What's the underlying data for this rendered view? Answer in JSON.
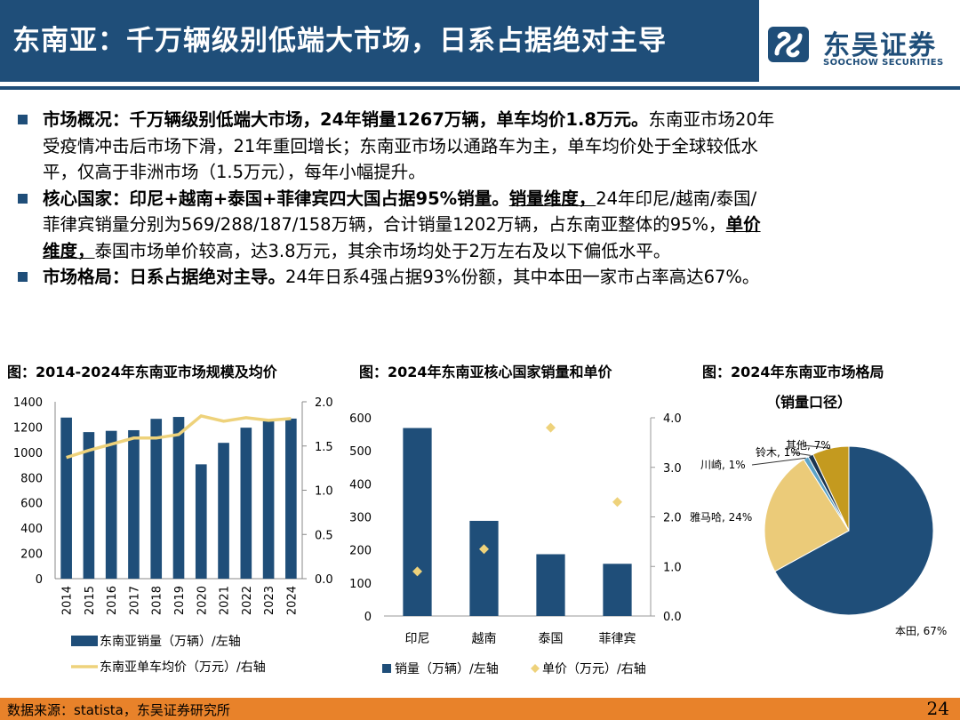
{
  "header": {
    "title": "东南亚：千万辆级别低端大市场，日系占据绝对主导",
    "brand_cn": "东吴证券",
    "brand_en": "SOOCHOW SECURITIES",
    "brand_color": "#1F4E79"
  },
  "bullets": [
    {
      "lead": "市场概况：千万辆级别低端大市场，24年销量1267万辆，单车均价1.8万元。",
      "lines": [
        "东南亚市场20年",
        "受疫情冲击后市场下滑，21年重回增长；东南亚市场以通路车为主，单车均价处于全球较低水",
        "平，仅高于非洲市场（1.5万元），每年小幅提升。"
      ]
    },
    {
      "lead": "核心国家：印尼+越南+泰国+菲律宾四大国占据95%销量。",
      "sub1": "销量维度，",
      "text1": "24年印尼/越南/泰国/",
      "line2": "菲律宾销量分别为569/288/187/158万辆，合计销量1202万辆，占东南亚整体的95%，",
      "sub2a": "单价",
      "sub2b": "维度，",
      "text3": "泰国市场单价较高，达3.8万元，其余市场均处于2万左右及以下偏低水平。"
    },
    {
      "lead": "市场格局：日系占据绝对主导。",
      "text": "24年日系4强占据93%份额，其中本田一家市占率高达67%。"
    }
  ],
  "captions": {
    "c1": "图：2014-2024年东南亚市场规模及均价",
    "c2": "图：2024年东南亚核心国家销量和单价",
    "c3a": "图：2024年东南亚市场格局",
    "c3b": "（销量口径）"
  },
  "footer": {
    "source": "数据来源：statista，东吴证券研究所",
    "page": "24"
  },
  "chart_data": [
    {
      "type": "bar",
      "categories": [
        "2014",
        "2015",
        "2016",
        "2017",
        "2018",
        "2019",
        "2020",
        "2021",
        "2022",
        "2023",
        "2024"
      ],
      "series": [
        {
          "name": "东南亚销量（万辆）/左轴",
          "kind": "bar",
          "axis": "left",
          "color": "#1F4E79",
          "values": [
            1275,
            1160,
            1170,
            1175,
            1265,
            1280,
            905,
            1075,
            1195,
            1245,
            1267
          ]
        },
        {
          "name": "东南亚单车均价（万元）/右轴",
          "kind": "line",
          "axis": "right",
          "color": "#EED27B",
          "values": [
            1.37,
            1.45,
            1.52,
            1.59,
            1.59,
            1.63,
            1.84,
            1.78,
            1.82,
            1.79,
            1.81
          ]
        }
      ],
      "y_left": {
        "min": 0,
        "max": 1400,
        "ticks": [
          "0",
          "200",
          "400",
          "600",
          "800",
          "1000",
          "1200",
          "1400"
        ]
      },
      "y_right": {
        "min": 0,
        "max": 2.0,
        "ticks": [
          "0.0",
          "0.5",
          "1.0",
          "1.5",
          "2.0"
        ]
      },
      "legend": "bottom"
    },
    {
      "type": "bar",
      "categories": [
        "印尼",
        "越南",
        "泰国",
        "菲律宾"
      ],
      "series": [
        {
          "name": "销量（万辆）/左轴",
          "kind": "bar",
          "axis": "left",
          "color": "#1F4E79",
          "values": [
            569,
            288,
            187,
            158
          ]
        },
        {
          "name": "单价（万元）/右轴",
          "kind": "scatter",
          "axis": "right",
          "color": "#EED27B",
          "values": [
            0.9,
            1.35,
            3.8,
            2.3
          ]
        }
      ],
      "y_left": {
        "min": 0,
        "max": 600,
        "ticks": [
          "0",
          "100",
          "200",
          "300",
          "400",
          "500",
          "600"
        ]
      },
      "y_right": {
        "min": 0,
        "max": 4.0,
        "ticks": [
          "0.0",
          "1.0",
          "2.0",
          "3.0",
          "4.0"
        ]
      },
      "legend": "bottom"
    },
    {
      "type": "pie",
      "slices": [
        {
          "label": "本田, 67%",
          "value": 67,
          "color": "#1F4E79"
        },
        {
          "label": "雅马哈, 24%",
          "value": 24,
          "color": "#EBCB79"
        },
        {
          "label": "川崎, 1%",
          "value": 1,
          "color": "#5BA3C7"
        },
        {
          "label": "铃木, 1%",
          "value": 1,
          "color": "#1B3550"
        },
        {
          "label": "其他, 7%",
          "value": 7,
          "color": "#C49A1F"
        }
      ]
    }
  ]
}
